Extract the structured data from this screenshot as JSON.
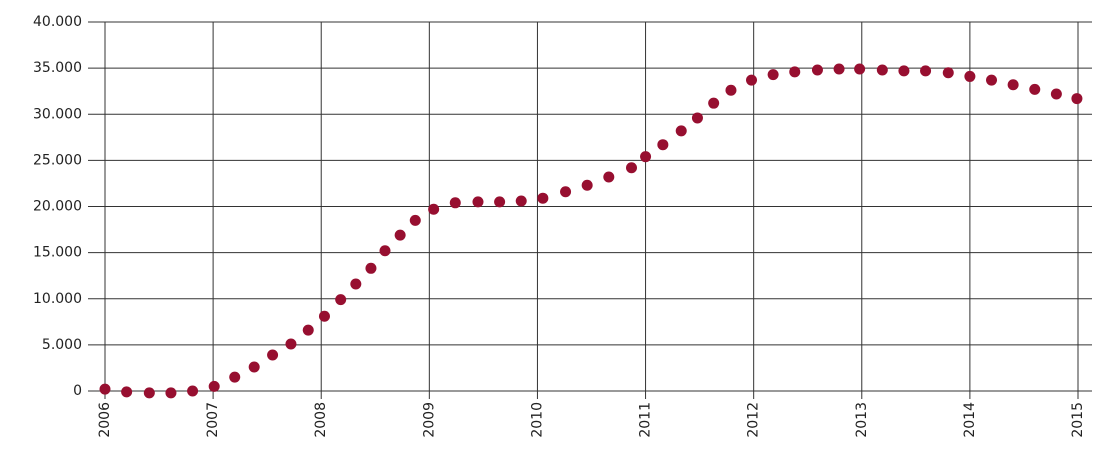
{
  "chart_data": {
    "type": "scatter",
    "x": [
      2006.0,
      2006.2,
      2006.41,
      2006.61,
      2006.81,
      2007.01,
      2007.2,
      2007.38,
      2007.55,
      2007.72,
      2007.88,
      2008.03,
      2008.18,
      2008.32,
      2008.46,
      2008.59,
      2008.73,
      2008.87,
      2009.04,
      2009.24,
      2009.45,
      2009.65,
      2009.85,
      2010.05,
      2010.26,
      2010.46,
      2010.66,
      2010.87,
      2011.0,
      2011.16,
      2011.33,
      2011.48,
      2011.63,
      2011.79,
      2011.98,
      2012.18,
      2012.38,
      2012.59,
      2012.79,
      2012.98,
      2013.19,
      2013.39,
      2013.59,
      2013.8,
      2014.0,
      2014.2,
      2014.4,
      2014.6,
      2014.8,
      2014.99
    ],
    "values": [
      200,
      -100,
      -200,
      -200,
      0,
      500,
      1500,
      2600,
      3900,
      5100,
      6600,
      8100,
      9900,
      11600,
      13300,
      15200,
      16900,
      18500,
      19700,
      20400,
      20500,
      20500,
      20600,
      20900,
      21600,
      22300,
      23200,
      24200,
      25400,
      26700,
      28200,
      29600,
      31200,
      32600,
      33700,
      34300,
      34600,
      34800,
      34900,
      34900,
      34800,
      34700,
      34700,
      34500,
      34100,
      33700,
      33200,
      32700,
      32200,
      31700
    ],
    "color": "#970f30",
    "xlim": [
      2006,
      2015
    ],
    "xticks": [
      2006,
      2007,
      2008,
      2009,
      2010,
      2011,
      2012,
      2013,
      2014,
      2015
    ],
    "ylim": [
      0,
      40000
    ],
    "yticks": [
      0,
      {
        "value": 5000,
        "label": "5.000"
      },
      {
        "value": 10000,
        "label": "10.000"
      },
      {
        "value": 15000,
        "label": "15.000"
      },
      {
        "value": 20000,
        "label": "20.000"
      },
      {
        "value": 25000,
        "label": "25.000"
      },
      {
        "value": 30000,
        "label": "30.000"
      },
      {
        "value": 35000,
        "label": "35.000"
      },
      {
        "value": 40000,
        "label": "40.000"
      }
    ],
    "grid": true
  }
}
